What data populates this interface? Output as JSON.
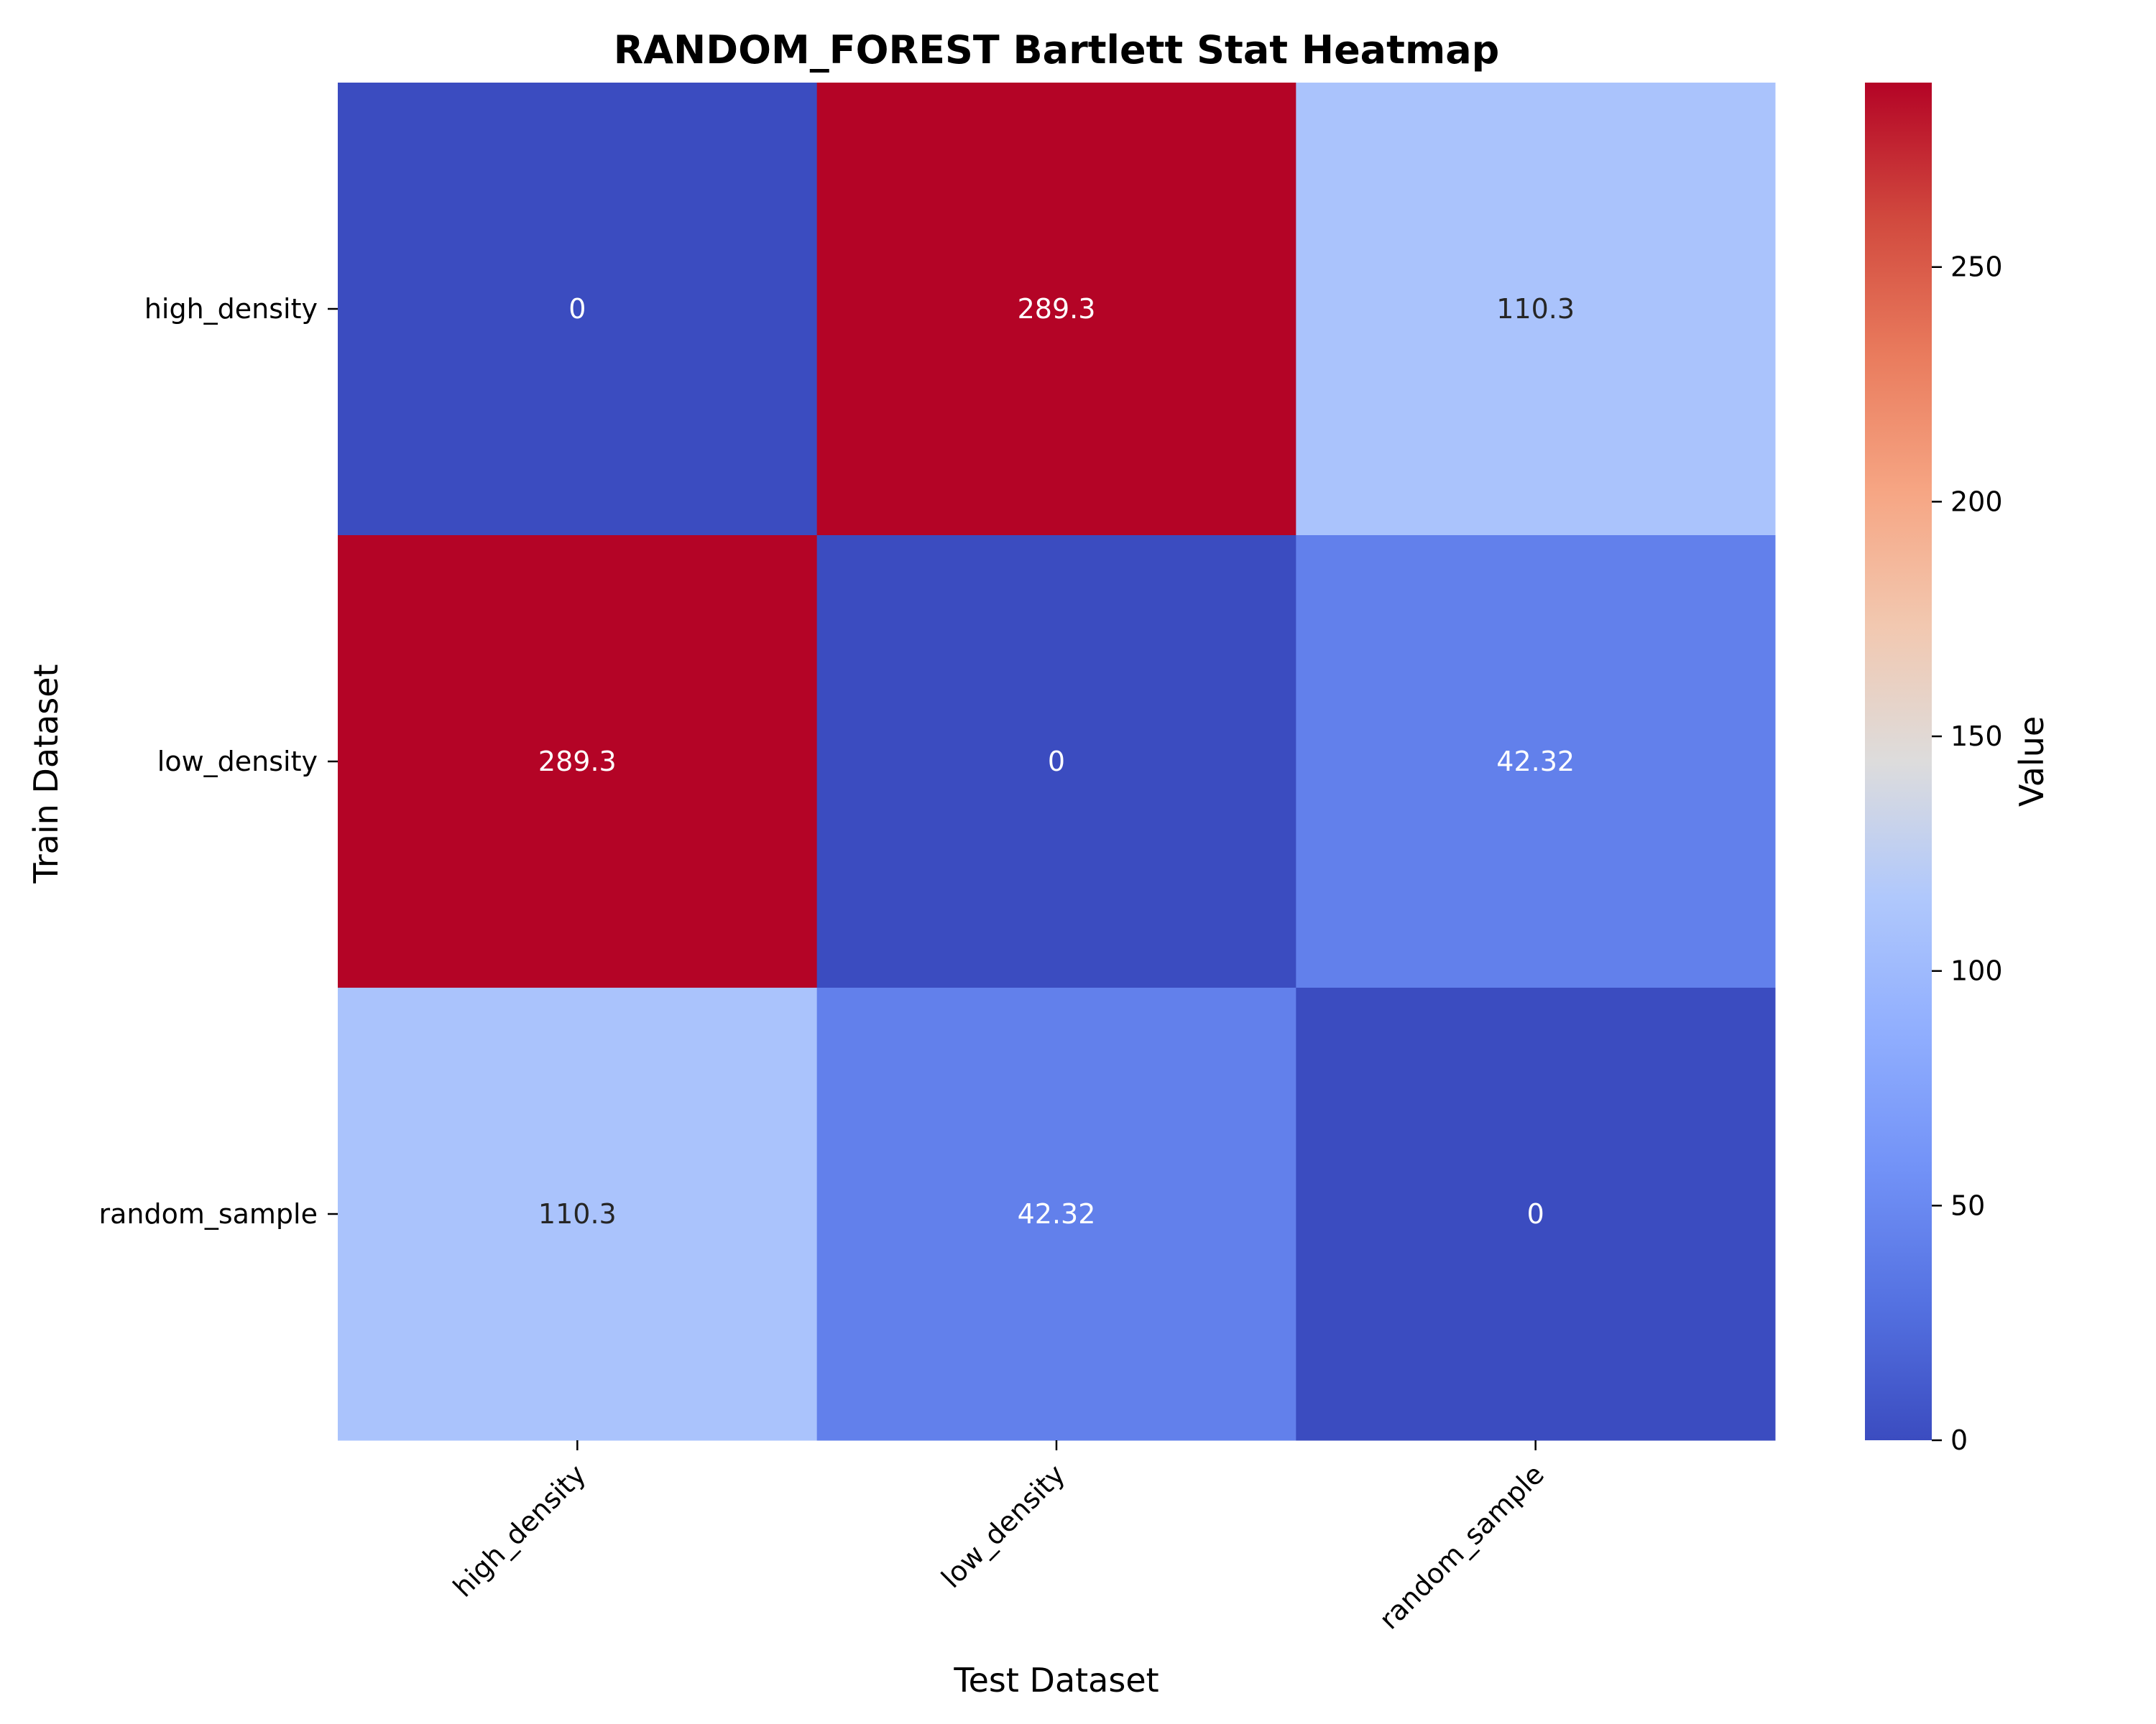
{
  "chart_data": {
    "type": "heatmap",
    "title": "RANDOM_FOREST Bartlett Stat Heatmap",
    "xlabel": "Test Dataset",
    "ylabel": "Train Dataset",
    "x_categories": [
      "high_density",
      "low_density",
      "random_sample"
    ],
    "y_categories": [
      "high_density",
      "low_density",
      "random_sample"
    ],
    "values": [
      [
        0,
        289.3,
        110.3
      ],
      [
        289.3,
        0,
        42.32
      ],
      [
        110.3,
        42.32,
        0
      ]
    ],
    "cell_labels": [
      [
        "0",
        "289.3",
        "110.3"
      ],
      [
        "289.3",
        "0",
        "42.32"
      ],
      [
        "110.3",
        "42.32",
        "0"
      ]
    ],
    "colormap": "coolwarm",
    "vmin": 0,
    "vmax": 289.3,
    "colorbar": {
      "label": "Value",
      "ticks": [
        0,
        50,
        100,
        150,
        200,
        250
      ],
      "tick_labels": [
        "0",
        "50",
        "100",
        "150",
        "200",
        "250"
      ]
    },
    "colors": {
      "low": "#3b4cc0",
      "mid": "#dddcdc",
      "high": "#b40426"
    }
  }
}
